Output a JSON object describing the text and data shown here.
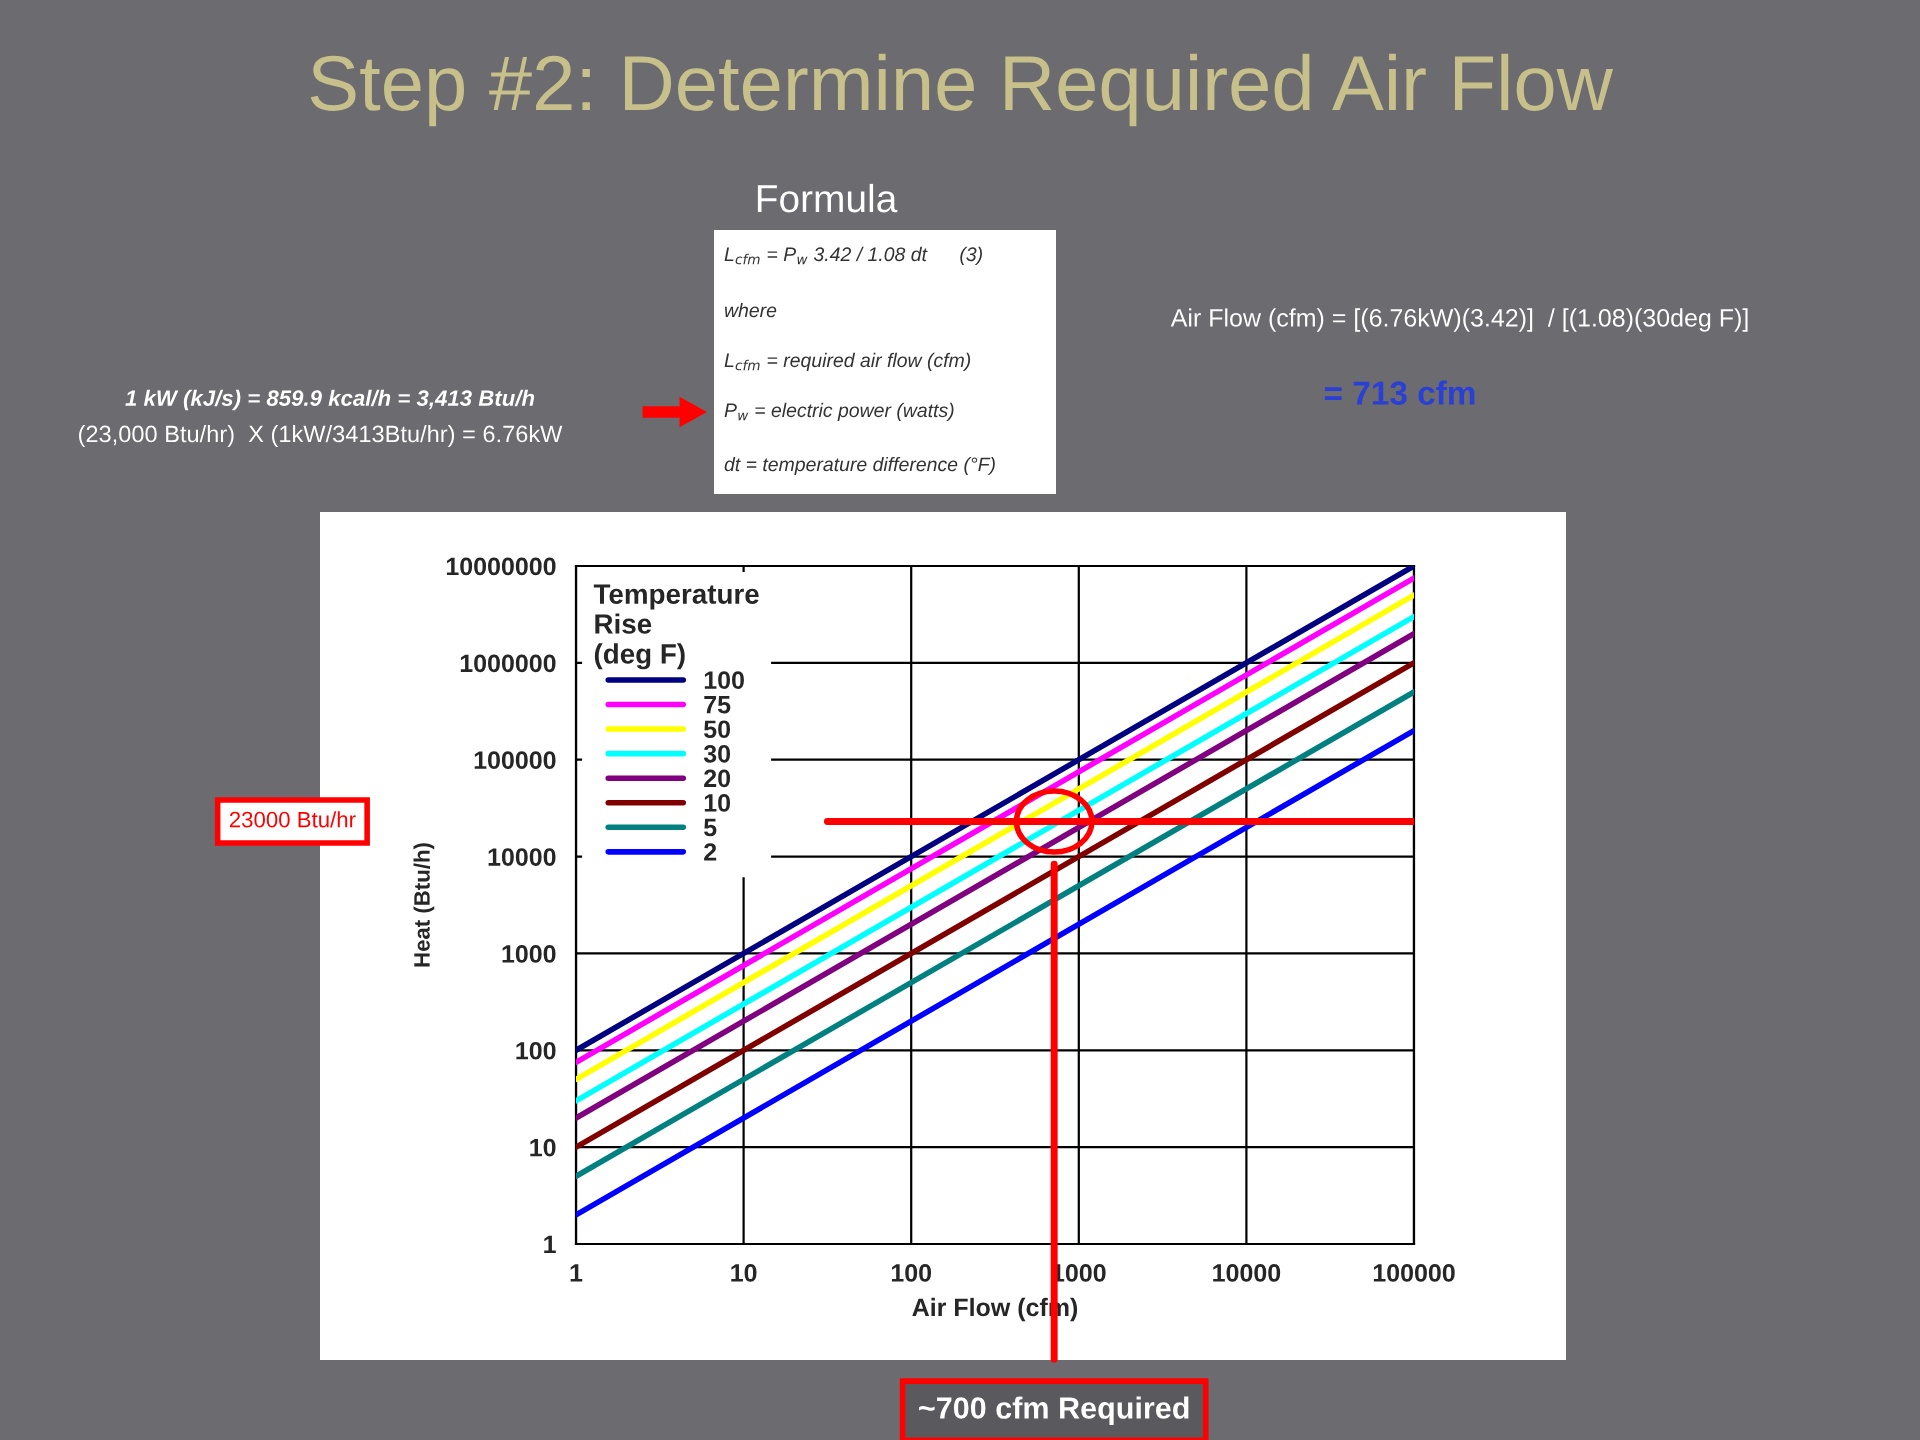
{
  "chart_data": {
    "type": "line",
    "title": "Step #2: Determine Required Air Flow",
    "xlabel": "Air Flow (cfm)",
    "ylabel": "Heat (Btu/h)",
    "legend_title": "Temperature\nRise\n(deg F)",
    "x": [
      1,
      100000
    ],
    "series": [
      {
        "name": "100",
        "color": "#000080",
        "values": [
          100,
          10000000
        ]
      },
      {
        "name": "75",
        "color": "#ff00ff",
        "values": [
          75,
          7500000
        ]
      },
      {
        "name": "50",
        "color": "#ffff00",
        "values": [
          50,
          5000000
        ]
      },
      {
        "name": "30",
        "color": "#00ffff",
        "values": [
          30,
          3000000
        ]
      },
      {
        "name": "20",
        "color": "#800080",
        "values": [
          20,
          2000000
        ]
      },
      {
        "name": "10",
        "color": "#800000",
        "values": [
          10,
          1000000
        ]
      },
      {
        "name": "5",
        "color": "#008080",
        "values": [
          5,
          500000
        ]
      },
      {
        "name": "2",
        "color": "#0000ff",
        "values": [
          2,
          200000
        ]
      }
    ],
    "log": "xy",
    "xlim": [
      1,
      100000
    ],
    "ylim": [
      1,
      10000000
    ],
    "xticks": [
      1,
      10,
      100,
      1000,
      10000,
      100000
    ],
    "yticks": [
      1,
      10,
      100,
      1000,
      10000,
      100000,
      1000000,
      10000000
    ],
    "grid": true,
    "legend": "top left",
    "marker": "none",
    "line_style": "solid",
    "ref_lines": [
      {
        "axis": "y",
        "value": 23000,
        "label": "23000 Btu/hr",
        "color": "#ff0000"
      },
      {
        "axis": "x",
        "value": 713,
        "label": "~700 cfm Required",
        "color": "#ff0000"
      }
    ],
    "annotations": [
      "Formula",
      "L$_{cfm}$ = P$_{w}$ 3.42 / 1.08 dt      (3)",
      "where",
      "L$_{cfm}$ = required air flow (cfm)",
      "P$_{w}$ = electric power (watts)",
      "dt = temperature difference (°F)",
      "1 kW (kJ/s) = 859.9 kcal/h = 3,413 Btu/h",
      "(23,000 Btu/hr)  X (1kW/3413Btu/hr) = 6.76kW",
      "Air Flow (cfm) = [(6.76kW)(3.42)]  / [(1.08)(30deg F)]",
      "= 713 cfm"
    ]
  }
}
